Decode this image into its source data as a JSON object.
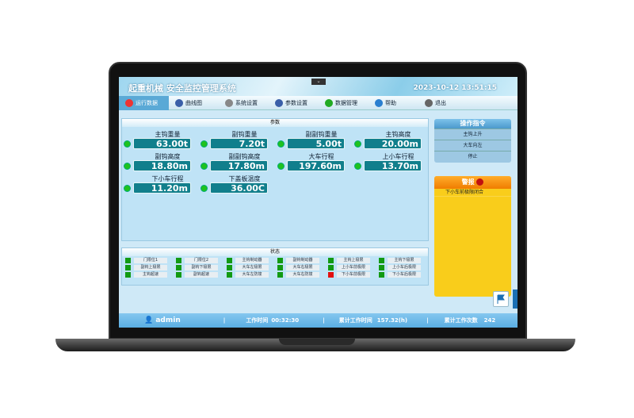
{
  "header": {
    "title": "起重机械 安全监控管理系统",
    "datetime": "2023-10-12 13:51:15",
    "dropdown": "⌄"
  },
  "nav": [
    {
      "label": "运行数据",
      "active": true,
      "icon": "record-icon"
    },
    {
      "label": "曲线图",
      "icon": "monitor-icon"
    },
    {
      "label": "系统设置",
      "icon": "gear-icon"
    },
    {
      "label": "参数设置",
      "icon": "monitor-icon"
    },
    {
      "label": "数据管理",
      "icon": "chart-monitor-icon"
    },
    {
      "label": "帮助",
      "icon": "help-icon"
    },
    {
      "label": "退出",
      "icon": "close-icon"
    }
  ],
  "params": {
    "title": "参数",
    "items": [
      {
        "label": "主钩重量",
        "value": "63.00t"
      },
      {
        "label": "副钩重量",
        "value": "7.20t"
      },
      {
        "label": "副副钩重量",
        "value": "5.00t"
      },
      {
        "label": "主钩高度",
        "value": "20.00m"
      },
      {
        "label": "副钩高度",
        "value": "18.80m"
      },
      {
        "label": "副副钩高度",
        "value": "17.80m"
      },
      {
        "label": "大车行程",
        "value": "197.60m"
      },
      {
        "label": "上小车行程",
        "value": "13.70m"
      },
      {
        "label": "下小车行程",
        "value": "11.20m"
      },
      {
        "label": "下盖板温度",
        "value": "36.00C"
      }
    ]
  },
  "status": {
    "title": "状态",
    "items": [
      {
        "label": "门限位1",
        "state": "ok"
      },
      {
        "label": "门限位2",
        "state": "ok"
      },
      {
        "label": "主钩制动器",
        "state": "ok"
      },
      {
        "label": "副钩制动器",
        "state": "ok"
      },
      {
        "label": "主钩上极限",
        "state": "ok"
      },
      {
        "label": "主钩下极限",
        "state": "ok"
      },
      {
        "label": "副钩上极限",
        "state": "ok"
      },
      {
        "label": "副钩下极限",
        "state": "ok"
      },
      {
        "label": "大车左极限",
        "state": "ok"
      },
      {
        "label": "大车右极限",
        "state": "ok"
      },
      {
        "label": "上小车前极限",
        "state": "ok"
      },
      {
        "label": "上小车后极限",
        "state": "ok"
      },
      {
        "label": "主钩超速",
        "state": "ok"
      },
      {
        "label": "副钩超速",
        "state": "ok"
      },
      {
        "label": "大车左防撞",
        "state": "ok"
      },
      {
        "label": "大车右防撞",
        "state": "ok"
      },
      {
        "label": "下小车前极限",
        "state": "alarm"
      },
      {
        "label": "下小车后极限",
        "state": "ok"
      }
    ]
  },
  "commands": {
    "title": "操作指令",
    "items": [
      "主钩上升",
      "大车向左",
      "停止"
    ]
  },
  "alarm": {
    "title": "警报",
    "items": [
      "下小车前极限闭合"
    ]
  },
  "footer": {
    "user": "admin",
    "work_time_label": "工作时间",
    "work_time": "00:32:30",
    "total_time_label": "累计工作时间",
    "total_time": "157.32(h)",
    "total_count_label": "累计工作次数",
    "total_count": "242"
  },
  "colors": {
    "ok": "#129a12",
    "alarm": "#e21010",
    "accent": "#5aa9d6"
  }
}
